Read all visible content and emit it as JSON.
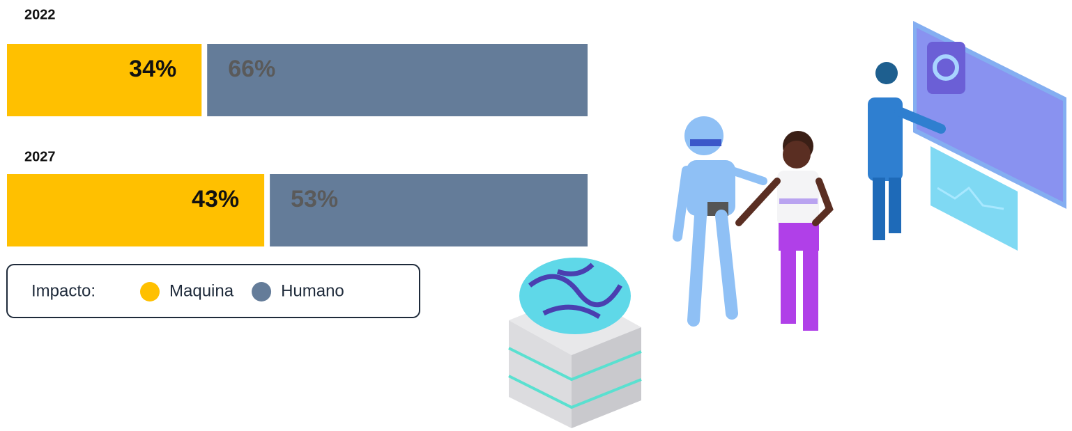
{
  "chart_data": {
    "type": "bar",
    "categories": [
      "2022",
      "2027"
    ],
    "series": [
      {
        "name": "Maquina",
        "color": "#ffc000",
        "values": [
          34,
          43
        ],
        "value_labels": [
          "34%",
          "43%"
        ]
      },
      {
        "name": "Humano",
        "color": "#647c99",
        "values": [
          66,
          53
        ],
        "value_labels": [
          "66%",
          "53%"
        ]
      }
    ],
    "legend_title": "Impacto:"
  }
}
